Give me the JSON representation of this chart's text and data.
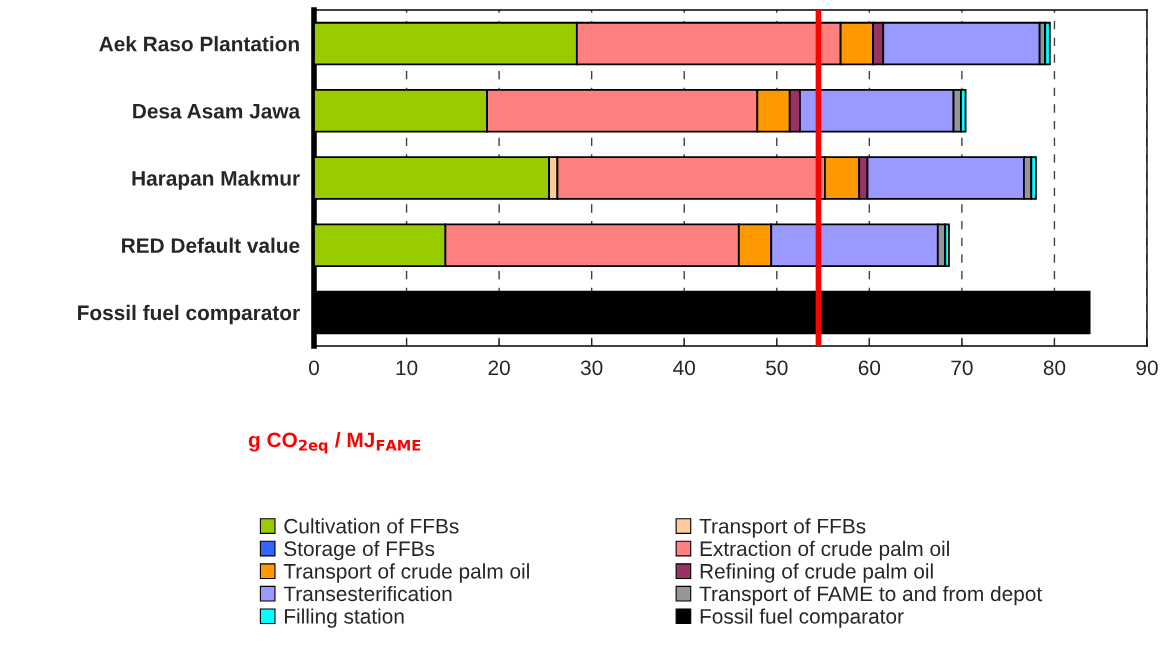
{
  "chart_data": {
    "type": "bar",
    "orientation": "horizontal",
    "stacked": true,
    "xlabel": "g CO$_{2eq}$ / MJ$_{FAME}$",
    "categories": [
      "Aek Raso Plantation",
      "Desa Asam Jawa",
      "Harapan Makmur",
      "RED Default value",
      "Fossil fuel comparator"
    ],
    "series": [
      {
        "name": "Cultivation of FFBs",
        "color": "#99cc00",
        "values": [
          28.4,
          18.7,
          25.4,
          14.2,
          null
        ]
      },
      {
        "name": "Transport of FFBs",
        "color": "#ffcc99",
        "values": [
          null,
          null,
          0.9,
          null,
          null
        ]
      },
      {
        "name": "Storage of FFBs",
        "color": "#3366ff",
        "values": [
          null,
          null,
          null,
          null,
          null
        ]
      },
      {
        "name": "Extraction of crude palm oil",
        "color": "#ff8080",
        "values": [
          28.5,
          29.2,
          28.9,
          31.7,
          null
        ]
      },
      {
        "name": "Transport of crude palm oil",
        "color": "#ff9900",
        "values": [
          3.5,
          3.5,
          3.7,
          3.5,
          null
        ]
      },
      {
        "name": "Refining of crude palm oil",
        "color": "#993366",
        "values": [
          1.1,
          1.1,
          0.9,
          null,
          null
        ]
      },
      {
        "name": "Transesterification",
        "color": "#9999ff",
        "values": [
          16.9,
          16.6,
          16.9,
          18.0,
          null
        ]
      },
      {
        "name": "Transport of FAME to and from depot",
        "color": "#969696",
        "values": [
          0.6,
          0.8,
          0.8,
          0.8,
          null
        ]
      },
      {
        "name": "Filling station",
        "color": "#00ffff",
        "values": [
          0.5,
          0.5,
          0.5,
          0.4,
          null
        ]
      },
      {
        "name": "Fossil fuel comparator",
        "color": "#000000",
        "values": [
          null,
          null,
          null,
          null,
          83.8
        ]
      }
    ],
    "xlim": [
      0,
      90
    ],
    "xticks": [
      0,
      10,
      20,
      30,
      40,
      50,
      60,
      70,
      80,
      90
    ],
    "ref_lines": [
      {
        "axis": "x",
        "value": 54.5,
        "color": "#ff0000",
        "line_style": "solid"
      }
    ],
    "grid": "x",
    "legend": "bottom"
  }
}
